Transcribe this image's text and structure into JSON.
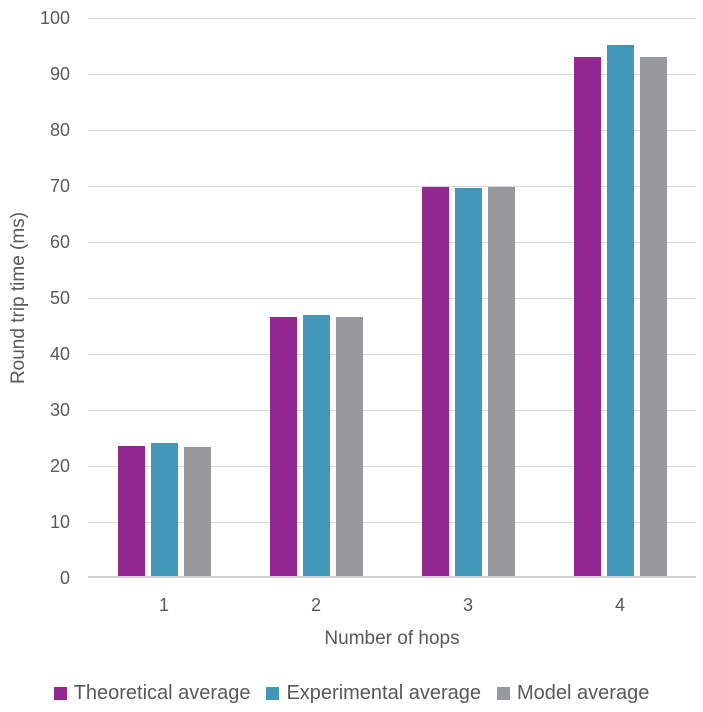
{
  "chart_data": {
    "type": "bar",
    "title": "",
    "categories": [
      "1",
      "2",
      "3",
      "4"
    ],
    "series": [
      {
        "name": "Theoretical average",
        "color": "#922790",
        "values": [
          23.2,
          46.3,
          69.4,
          92.6
        ]
      },
      {
        "name": "Experimental average",
        "color": "#4296B8",
        "values": [
          23.7,
          46.6,
          69.2,
          94.8
        ]
      },
      {
        "name": "Model average",
        "color": "#97989C",
        "values": [
          23.1,
          46.3,
          69.4,
          92.6
        ]
      }
    ],
    "xlabel": "Number of hops",
    "ylabel": "Round trip time (ms)",
    "ylim": [
      0,
      100
    ],
    "ytick_step": 10,
    "grid": true,
    "legend_position": "bottom"
  },
  "style_colors": {
    "grid": "#D9D9D9",
    "axis_line": "#D1D1D1",
    "tick_label": "#595959",
    "axis_title": "#595959",
    "legend_text": "#595959",
    "background": "#FFFFFF"
  }
}
